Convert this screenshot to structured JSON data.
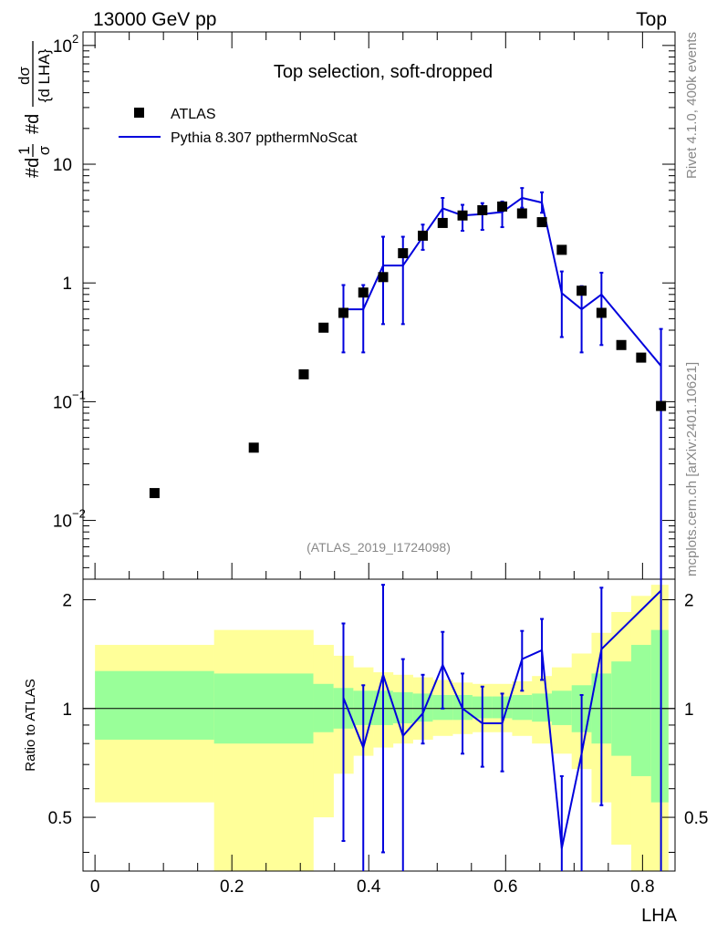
{
  "header": {
    "left": "13000 GeV pp",
    "right": "Top"
  },
  "side_text": {
    "rivet": "Rivet 4.1.0,  400k events",
    "mcplots": "mcplots.cern.ch [arXiv:2401.10621]"
  },
  "colors": {
    "mc": "#0000dd",
    "band1": "#99ff99",
    "band2": "#ffff99",
    "data": "#000000"
  },
  "chart_data": [
    {
      "type": "scatter",
      "title": "Top selection, soft-dropped",
      "analysis": "(ATLAS_2019_I1724098)",
      "ylabel_parts": {
        "a": "#d",
        "num1": "1",
        "den1": "σ",
        "b": "#d",
        "num2": "dσ",
        "den2": "{d LHA}"
      },
      "yscale": "log",
      "ylim": [
        0.0032,
        130
      ],
      "xlim": [
        -0.0175,
        0.8475
      ],
      "yticks": [
        {
          "value": 100,
          "base": "10",
          "exp": "2"
        },
        {
          "value": 10,
          "base": "10",
          "exp": ""
        },
        {
          "value": 1,
          "base": "1",
          "exp": ""
        },
        {
          "value": 0.1,
          "base": "10",
          "exp": "−1"
        },
        {
          "value": 0.01,
          "base": "10",
          "exp": "−2"
        }
      ],
      "legend": [
        {
          "label": "ATLAS",
          "marker": "square"
        },
        {
          "label": "Pythia 8.307 ppthermNoScat",
          "marker": "line"
        }
      ],
      "data_points": {
        "name": "ATLAS",
        "x": [
          0.087,
          0.232,
          0.305,
          0.334,
          0.363,
          0.392,
          0.421,
          0.45,
          0.479,
          0.508,
          0.537,
          0.566,
          0.595,
          0.624,
          0.653,
          0.682,
          0.711,
          0.74,
          0.769,
          0.798,
          0.827
        ],
        "y": [
          0.017,
          0.041,
          0.17,
          0.42,
          0.56,
          0.83,
          1.12,
          1.78,
          2.5,
          3.2,
          3.7,
          4.1,
          4.4,
          3.85,
          3.25,
          1.9,
          0.86,
          0.56,
          0.3,
          0.235,
          0.092
        ]
      },
      "mc_series": {
        "name": "Pythia 8.307 ppthermNoScat",
        "edges": [
          0.3485,
          0.3775,
          0.4065,
          0.4355,
          0.4645,
          0.4935,
          0.5225,
          0.5515,
          0.5805,
          0.6095,
          0.6385,
          0.6675,
          0.6965,
          0.7255,
          0.7545,
          0.8255
        ],
        "x": [
          0.363,
          0.392,
          0.421,
          0.45,
          0.479,
          0.508,
          0.537,
          0.566,
          0.595,
          0.624,
          0.653,
          0.682,
          0.711,
          0.74,
          0.827
        ],
        "y": [
          0.6,
          0.6,
          1.4,
          1.4,
          2.45,
          4.25,
          3.7,
          3.8,
          3.95,
          5.2,
          4.75,
          0.82,
          0.6,
          0.8,
          0.2
        ],
        "err_low": [
          0.26,
          0.26,
          0.45,
          0.45,
          1.9,
          3.2,
          2.75,
          2.8,
          2.95,
          4.3,
          3.9,
          0.35,
          0.26,
          0.3,
          0.0001
        ],
        "err_high": [
          0.96,
          0.96,
          2.45,
          2.45,
          3.1,
          5.2,
          4.55,
          4.7,
          4.85,
          6.3,
          5.8,
          1.25,
          0.94,
          1.22,
          0.41
        ]
      }
    },
    {
      "type": "line",
      "ylabel": "Ratio to ATLAS",
      "xlabel": "LHA",
      "ylim": [
        0.355,
        2.28
      ],
      "xlim": [
        -0.0175,
        0.8475
      ],
      "yticks": [
        0.5,
        1,
        2
      ],
      "ytick_labels": [
        "0.5",
        "1",
        "2"
      ],
      "xticks": [
        0,
        0.2,
        0.4,
        0.6,
        0.8
      ],
      "xtick_labels": [
        "0",
        "0.2",
        "0.4",
        "0.6",
        "0.8"
      ],
      "reference": 1,
      "bands": {
        "edges": [
          0.0,
          0.174,
          0.319,
          0.3485,
          0.3775,
          0.4065,
          0.4355,
          0.4645,
          0.4935,
          0.5225,
          0.5515,
          0.5805,
          0.6095,
          0.6385,
          0.6675,
          0.6965,
          0.7255,
          0.7545,
          0.7835,
          0.8125,
          0.8375
        ],
        "inner_low": [
          0.82,
          0.8,
          0.86,
          0.88,
          0.9,
          0.9,
          0.91,
          0.92,
          0.93,
          0.93,
          0.94,
          0.94,
          0.93,
          0.92,
          0.9,
          0.86,
          0.8,
          0.74,
          0.65,
          0.55
        ],
        "inner_high": [
          1.27,
          1.25,
          1.17,
          1.14,
          1.12,
          1.12,
          1.11,
          1.1,
          1.09,
          1.09,
          1.08,
          1.08,
          1.09,
          1.1,
          1.12,
          1.16,
          1.25,
          1.35,
          1.5,
          1.65
        ],
        "outer_low": [
          0.55,
          0.35,
          0.5,
          0.66,
          0.74,
          0.78,
          0.8,
          0.82,
          0.84,
          0.85,
          0.86,
          0.86,
          0.84,
          0.8,
          0.75,
          0.68,
          0.55,
          0.42,
          0.3,
          0.25
        ],
        "outer_high": [
          1.5,
          1.65,
          1.5,
          1.4,
          1.3,
          1.26,
          1.24,
          1.22,
          1.2,
          1.18,
          1.17,
          1.17,
          1.19,
          1.23,
          1.3,
          1.42,
          1.62,
          1.85,
          2.05,
          2.2
        ]
      },
      "mc_ratio": {
        "x": [
          0.363,
          0.392,
          0.421,
          0.45,
          0.479,
          0.508,
          0.537,
          0.566,
          0.595,
          0.624,
          0.653,
          0.682,
          0.711,
          0.74,
          0.827
        ],
        "y": [
          1.07,
          0.78,
          1.24,
          0.84,
          0.97,
          1.32,
          1.0,
          0.91,
          0.91,
          1.37,
          1.45,
          0.41,
          0.75,
          1.46,
          2.12
        ],
        "err_low": [
          0.43,
          0.3,
          0.4,
          0.25,
          0.8,
          1.0,
          0.75,
          0.69,
          0.67,
          1.12,
          1.2,
          0.19,
          0.31,
          0.54,
          0.001
        ],
        "err_high": [
          1.72,
          1.16,
          2.2,
          1.37,
          1.24,
          1.63,
          1.25,
          1.15,
          1.1,
          1.64,
          1.77,
          0.65,
          1.09,
          2.16,
          4.5
        ]
      }
    }
  ]
}
